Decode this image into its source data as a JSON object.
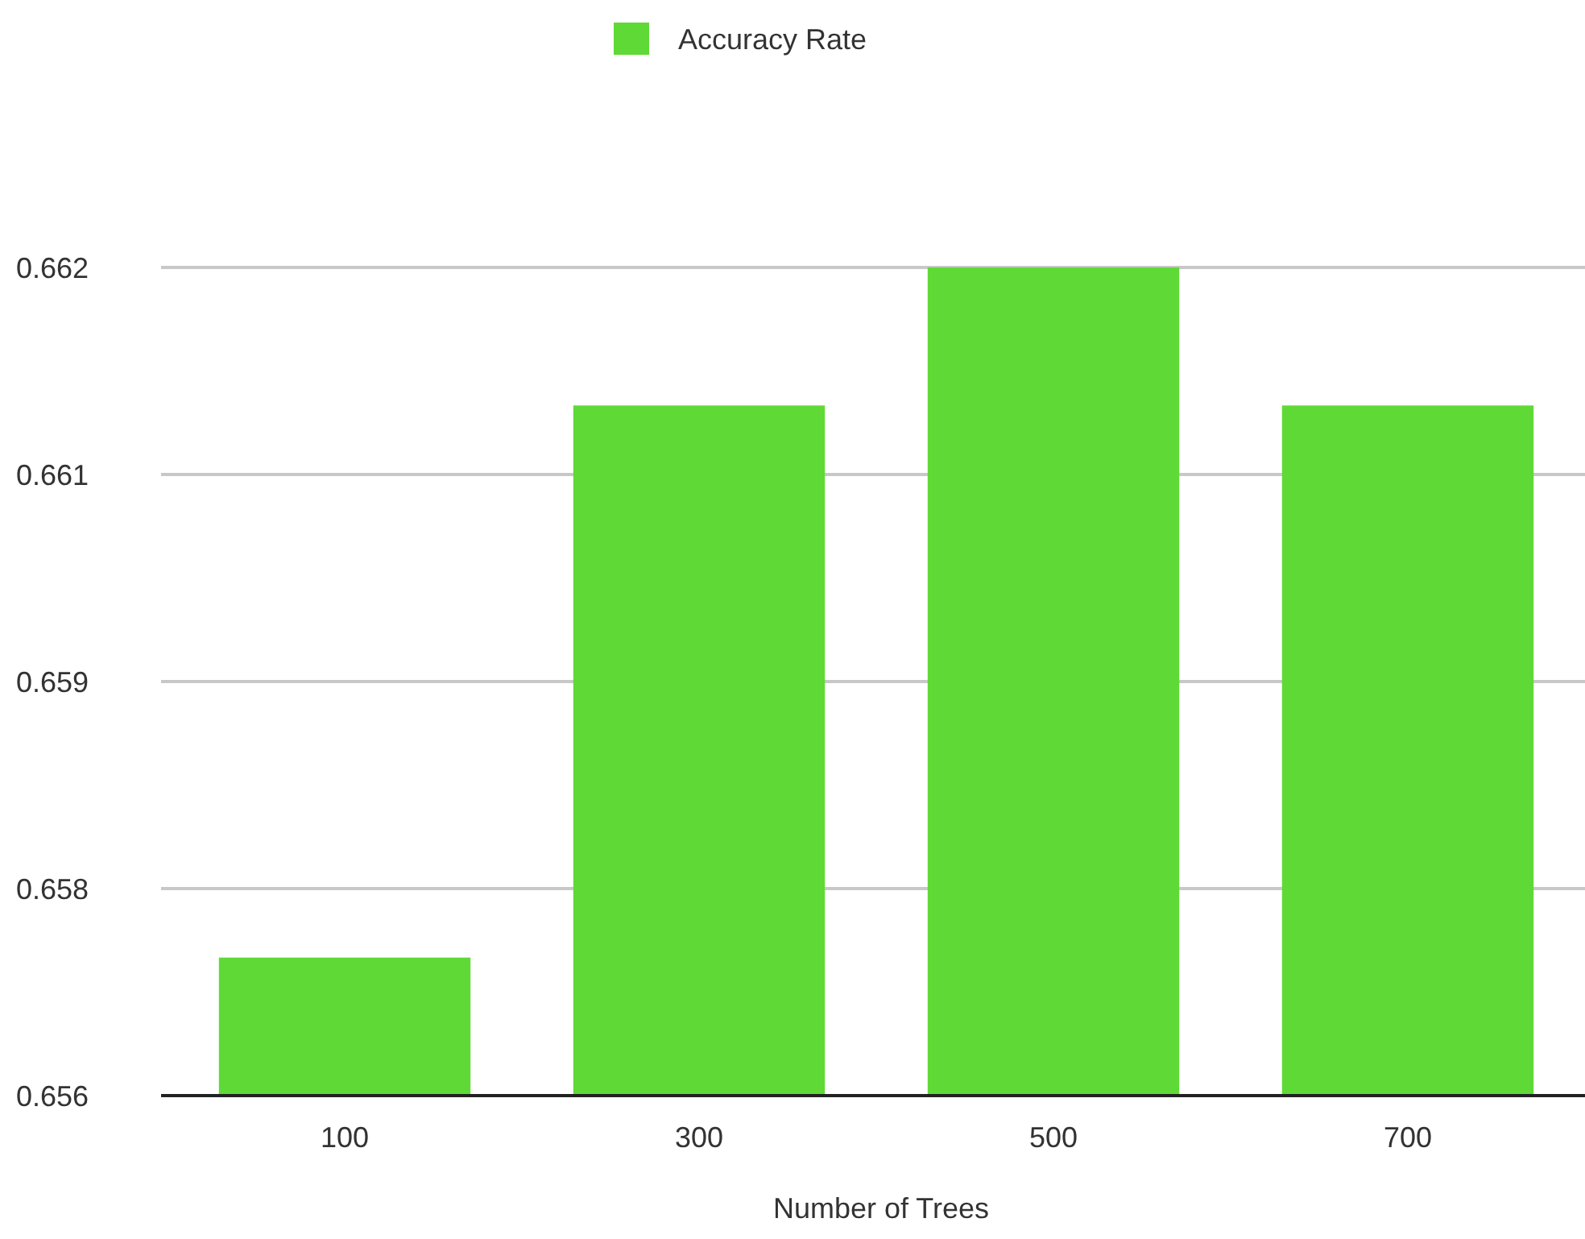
{
  "chart_data": {
    "type": "bar",
    "xlabel": "Number of Trees",
    "categories": [
      "100",
      "300",
      "500",
      "700"
    ],
    "series": [
      {
        "name": "Accuracy Rate",
        "color": "#5fd936",
        "values": [
          0.657,
          0.661,
          0.662,
          0.661
        ]
      }
    ],
    "ylim": [
      0.656,
      0.662
    ],
    "yticks": [
      0.656,
      {
        "value": 0.6575,
        "label": "0.658"
      },
      0.659,
      {
        "value": 0.6605,
        "label": "0.661"
      },
      0.662
    ],
    "grid": "y",
    "legend": "top"
  }
}
